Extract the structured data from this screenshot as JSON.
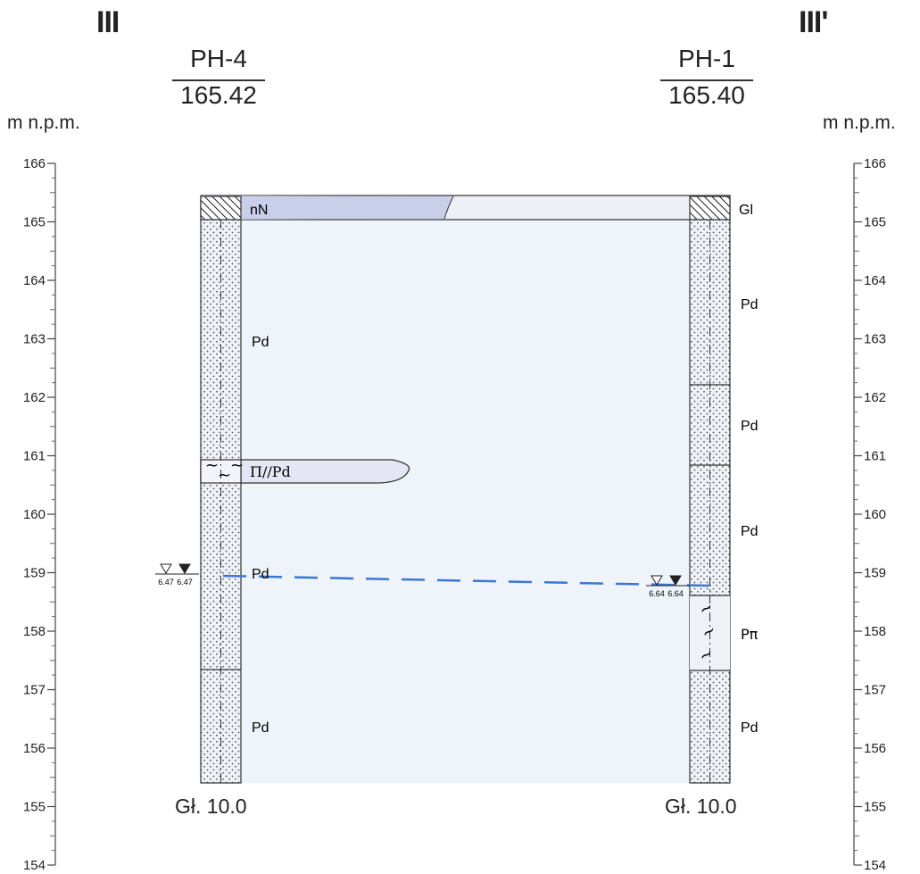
{
  "section": {
    "left_label": "III",
    "right_label": "III'"
  },
  "boreholes": [
    {
      "name": "PH-4",
      "elevation": "165.42",
      "depth_label": "Gł. 10.0",
      "water_first": "6.47",
      "water_stable": "6.47"
    },
    {
      "name": "PH-1",
      "elevation": "165.40",
      "depth_label": "Gł. 10.0",
      "water_first": "6.64",
      "water_stable": "6.64"
    }
  ],
  "axis": {
    "unit_label": "m n.p.m.",
    "ticks": [
      "166",
      "165",
      "164",
      "163",
      "162",
      "161",
      "160",
      "159",
      "158",
      "157",
      "156",
      "155",
      "154"
    ]
  },
  "layers": {
    "top_left": "nN",
    "top_right": "Gl",
    "lens": "Π//Pd",
    "left": [
      "Pd",
      "Pd",
      "Pd"
    ],
    "right": [
      "Pd",
      "Pd",
      "Pd",
      "Pπ",
      "Pd"
    ]
  },
  "colors": {
    "fill_main": "#eef4fa",
    "fill_soil": "#dde3f3",
    "fill_top": "#c8cee8",
    "line": "#333333",
    "water_line": "#3a78d6",
    "dots": "#555555"
  }
}
